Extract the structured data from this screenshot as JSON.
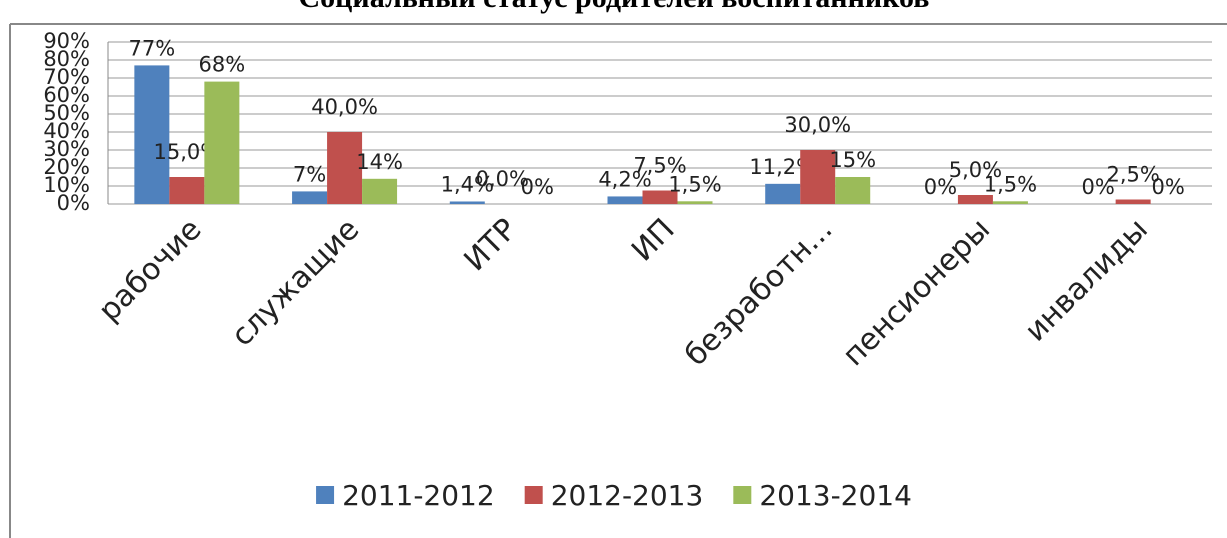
{
  "chart_data": {
    "type": "bar",
    "title": "Социальный статус родителей воспитанников",
    "categories": [
      "рабочие",
      "служащие",
      "ИТР",
      "ИП",
      "безработн...",
      "пенсионеры",
      "инвалиды"
    ],
    "series": [
      {
        "name": "2011-2012",
        "color": "#4f81bd",
        "values": [
          77,
          7,
          1.4,
          4.2,
          11.2,
          0,
          0
        ],
        "value_labels": [
          "77%",
          "7%",
          "1,4%",
          "4,2%",
          "11,2%",
          "0%",
          "0%"
        ]
      },
      {
        "name": "2012-2013",
        "color": "#c0504d",
        "values": [
          15,
          40,
          0,
          7.5,
          30,
          5,
          2.5
        ],
        "value_labels": [
          "15,0%",
          "40,0%",
          "0,0%",
          "7,5%",
          "30,0%",
          "5,0%",
          "2,5%"
        ]
      },
      {
        "name": "2013-2014",
        "color": "#9bbb59",
        "values": [
          68,
          14,
          0,
          1.5,
          15,
          1.5,
          0
        ],
        "value_labels": [
          "68%",
          "14%",
          "0%",
          "1,5%",
          "15%",
          "1,5%",
          "0%"
        ]
      }
    ],
    "ylim": [
      0,
      90
    ],
    "yticks": [
      {
        "value": 0,
        "label": "0%"
      },
      {
        "value": 10,
        "label": "10%"
      },
      {
        "value": 20,
        "label": "20%"
      },
      {
        "value": 30,
        "label": "30%"
      },
      {
        "value": 40,
        "label": "40%"
      },
      {
        "value": 50,
        "label": "50%"
      },
      {
        "value": 60,
        "label": "60%"
      },
      {
        "value": 70,
        "label": "70%"
      },
      {
        "value": 80,
        "label": "80%"
      },
      {
        "value": 90,
        "label": "90%"
      }
    ],
    "grid": true,
    "legend": "bottom"
  }
}
